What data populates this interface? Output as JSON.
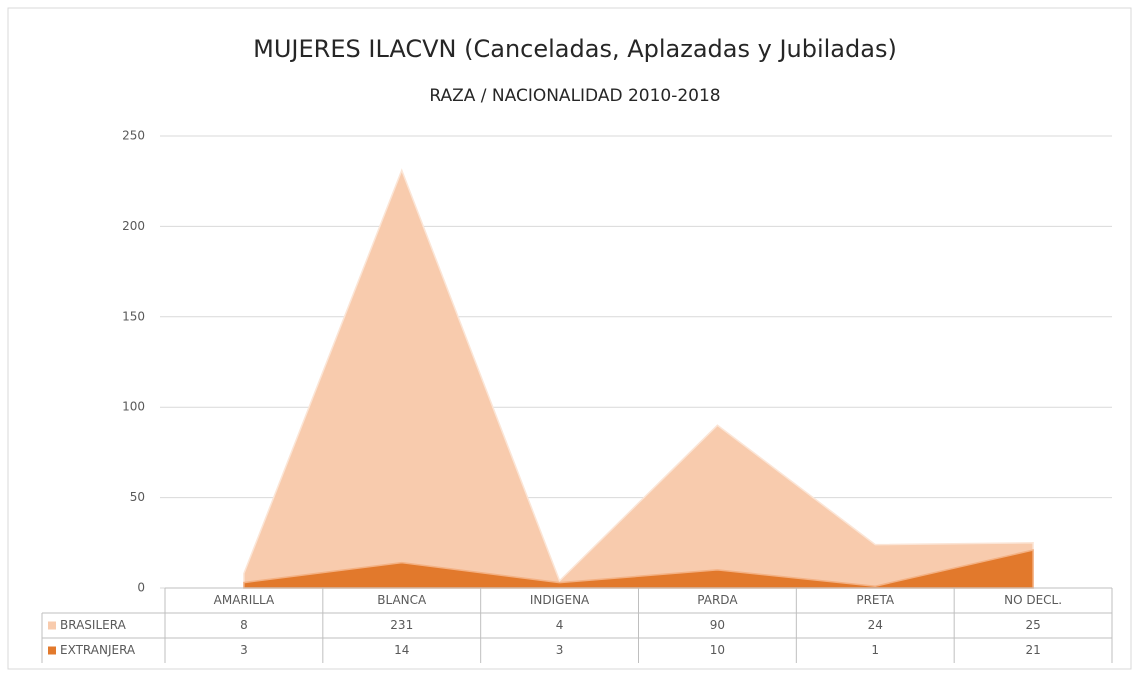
{
  "chart_data": {
    "type": "area",
    "title": "MUJERES ILACVN (Canceladas, Aplazadas y Jubiladas)",
    "subtitle": "RAZA / NACIONALIDAD 2010-2018",
    "categories": [
      "AMARILLA",
      "BLANCA",
      "INDIGENA",
      "PARDA",
      "PRETA",
      "NO DECL."
    ],
    "series": [
      {
        "name": "BRASILERA",
        "color": "#f8cbad",
        "values": [
          8,
          231,
          4,
          90,
          24,
          25
        ]
      },
      {
        "name": "EXTRANJERA",
        "color": "#e2792c",
        "values": [
          3,
          14,
          3,
          10,
          1,
          21
        ]
      }
    ],
    "ylim": [
      0,
      250
    ],
    "yticks": [
      0,
      50,
      100,
      150,
      200,
      250
    ],
    "grid": true
  }
}
